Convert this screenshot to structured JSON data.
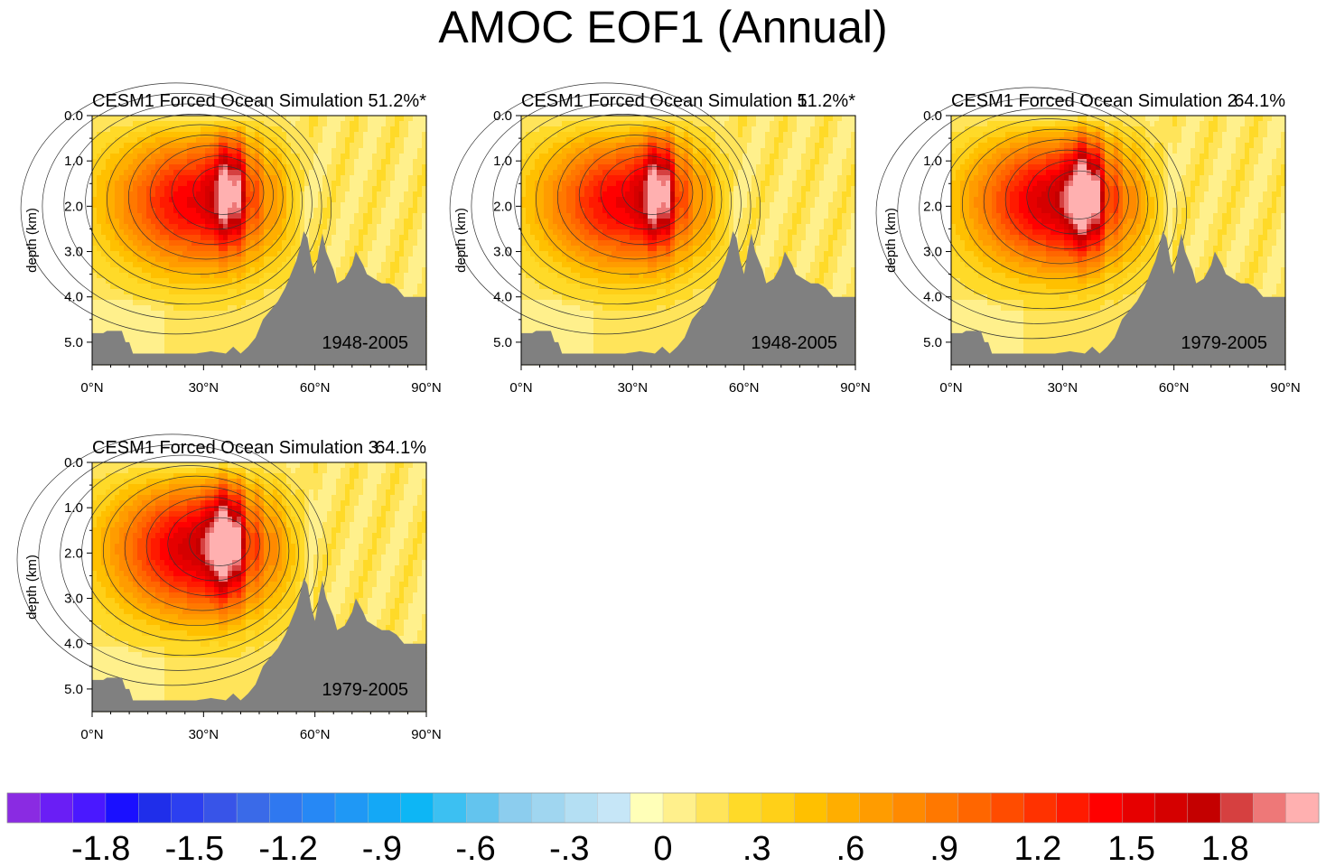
{
  "title": "AMOC EOF1 (Annual)",
  "colors": {
    "land": "#808080",
    "contour_line": "#333333"
  },
  "chart_data": [
    {
      "type": "contour",
      "title": "CESM1 Forced Ocean Simulation",
      "percent": "51.2%*",
      "period": "1948-2005",
      "ylabel": "depth (km)",
      "xlabel": "",
      "xlim": [
        0,
        90
      ],
      "ylim": [
        0,
        5.5
      ],
      "xticks": [
        "0°N",
        "30°N",
        "60°N",
        "90°N"
      ],
      "yticks": [
        "0.0",
        "1.0",
        "2.0",
        "3.0",
        "4.0",
        "5.0"
      ],
      "max_value": 1.75,
      "core_lat": 37,
      "core_depth": 1.6,
      "northern_sign_shift": 58
    },
    {
      "type": "contour",
      "title": "CESM1 Forced Ocean Simulation 1",
      "percent": "51.2%*",
      "period": "1948-2005",
      "ylabel": "depth (km)",
      "xlabel": "",
      "xlim": [
        0,
        90
      ],
      "ylim": [
        0,
        5.5
      ],
      "xticks": [
        "0°N",
        "30°N",
        "60°N",
        "90°N"
      ],
      "yticks": [
        "0.0",
        "1.0",
        "2.0",
        "3.0",
        "4.0",
        "5.0"
      ],
      "max_value": 1.75,
      "core_lat": 37,
      "core_depth": 1.6,
      "northern_sign_shift": 58
    },
    {
      "type": "contour",
      "title": "CESM1 Forced Ocean Simulation 2",
      "percent": "64.1%",
      "period": "1979-2005",
      "ylabel": "depth (km)",
      "xlabel": "",
      "xlim": [
        0,
        90
      ],
      "ylim": [
        0,
        5.5
      ],
      "xticks": [
        "0°N",
        "30°N",
        "60°N",
        "90°N"
      ],
      "yticks": [
        "0.0",
        "1.0",
        "2.0",
        "3.0",
        "4.0",
        "5.0"
      ],
      "max_value": 1.95,
      "core_lat": 36,
      "core_depth": 1.7,
      "northern_sign_shift": 60
    },
    {
      "type": "contour",
      "title": "CESM1 Forced Ocean Simulation 3",
      "percent": "64.1%",
      "period": "1979-2005",
      "ylabel": "depth (km)",
      "xlabel": "",
      "xlim": [
        0,
        90
      ],
      "ylim": [
        0,
        5.5
      ],
      "xticks": [
        "0°N",
        "30°N",
        "60°N",
        "90°N"
      ],
      "yticks": [
        "0.0",
        "1.0",
        "2.0",
        "3.0",
        "4.0",
        "5.0"
      ],
      "max_value": 1.95,
      "core_lat": 36,
      "core_depth": 1.7,
      "northern_sign_shift": 60
    }
  ],
  "colorbar": {
    "min": -2.1,
    "max": 2.1,
    "step": 0.1,
    "labels": [
      "-1.8",
      "-1.5",
      "-1.2",
      "-.9",
      "-.6",
      "-.3",
      "0",
      ".3",
      ".6",
      ".9",
      "1.2",
      "1.5",
      "1.8"
    ],
    "label_values": [
      -1.8,
      -1.5,
      -1.2,
      -0.9,
      -0.6,
      -0.3,
      0,
      0.3,
      0.6,
      0.9,
      1.2,
      1.5,
      1.8
    ],
    "colors": [
      "#8a2be2",
      "#6a1ef5",
      "#4a18ff",
      "#1a10ff",
      "#1f2eea",
      "#2c3ff0",
      "#3854e8",
      "#3a6ae8",
      "#2f78f0",
      "#2688f5",
      "#1f98f5",
      "#14a8f6",
      "#0db6f5",
      "#3cc0f2",
      "#63c4ee",
      "#8ccdee",
      "#a0d6f0",
      "#b4dff3",
      "#c6e6f7",
      "#ffffb8",
      "#fff08c",
      "#ffe45a",
      "#ffda28",
      "#ffd018",
      "#ffc000",
      "#ffae00",
      "#ff9c00",
      "#ff8a00",
      "#ff7800",
      "#ff6600",
      "#ff4c00",
      "#ff3200",
      "#ff1a00",
      "#ff0000",
      "#e60000",
      "#d50000",
      "#c40000",
      "#d64040",
      "#ee7878",
      "#ffb0b0"
    ]
  }
}
